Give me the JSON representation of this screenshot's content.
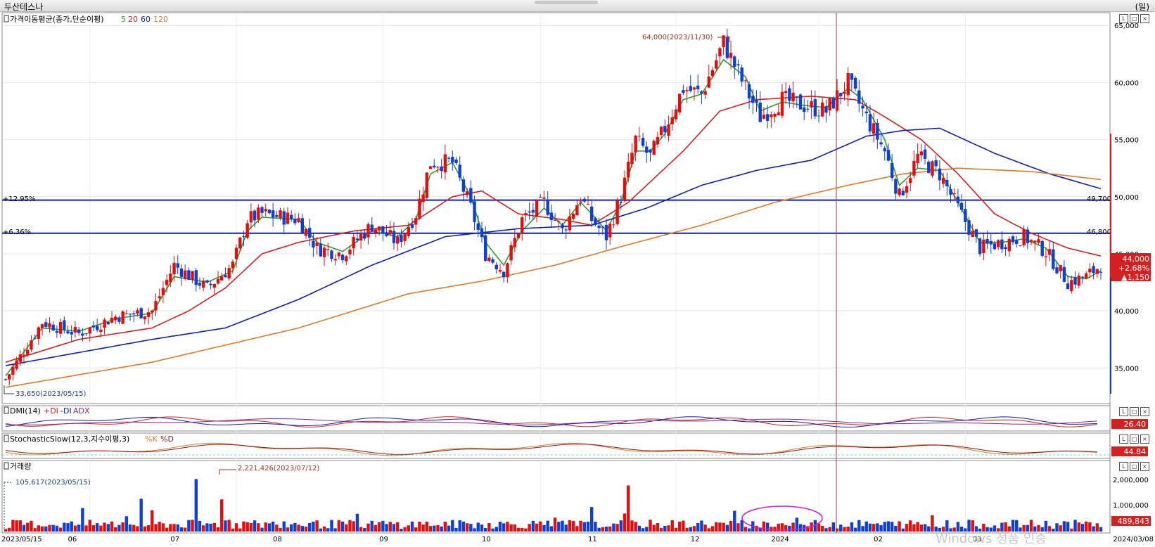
{
  "window": {
    "title": "두산테스나",
    "unit_label": "(일)"
  },
  "main_panel": {
    "legend_title": "가격이동평균(종가,단순이평)",
    "ma_periods": [
      "5",
      "20",
      "60",
      "120"
    ],
    "ma_colors": [
      "#2e9e2e",
      "#d42020",
      "#1020b0",
      "#e07a2a"
    ]
  },
  "annotations": {
    "high": "64,000(2023/11/30)",
    "low": "33,650(2023/05/15)",
    "line1_pct": "+12.95%",
    "line1_value": "49,700",
    "line2_pct": "+6.36%",
    "line2_value": "46,800",
    "current_price": "44,000",
    "change_pct": "+2.68%",
    "change_abs": "▲1,150",
    "volume_high": "2,221,426(2023/07/12)",
    "volume_low": "105,617(2023/05/15)"
  },
  "dmi_panel": {
    "title": "DMI(14)",
    "plus": "+DI",
    "minus": "-DI",
    "adx": "ADX",
    "value": "26.40"
  },
  "stoch_panel": {
    "title": "StochasticSlow(12,3,지수이평,3)",
    "k": "%K",
    "d": "%D",
    "value": "44.84"
  },
  "volume_panel": {
    "title": "거래량",
    "value": "489,843",
    "ticks": [
      "2,000,000",
      "1,000,000"
    ]
  },
  "x_labels": [
    "2023/05/15",
    "06",
    "07",
    "08",
    "09",
    "10",
    "11",
    "12",
    "2024",
    "02",
    "03",
    "2024/03/08"
  ],
  "watermark": "Windows 정품 인증",
  "chart_data": {
    "type": "candlestick",
    "title": "두산테스나",
    "xlabel": "",
    "ylabel": "",
    "x_range": [
      "2023/05/15",
      "2024/03/08"
    ],
    "ylim": [
      32000,
      66000
    ],
    "y_ticks": [
      35000,
      40000,
      45000,
      50000,
      55000,
      60000,
      65000
    ],
    "y_tick_labels": [
      "35,000",
      "40,000",
      "45,000",
      "50,000",
      "55,000",
      "60,000",
      "65,000"
    ],
    "horizontal_lines": [
      49700,
      46800
    ],
    "price_path": [
      [
        0,
        34000
      ],
      [
        10,
        39000
      ],
      [
        20,
        38000
      ],
      [
        30,
        39500
      ],
      [
        40,
        40000
      ],
      [
        46,
        44000
      ],
      [
        55,
        42000
      ],
      [
        62,
        44000
      ],
      [
        66,
        48000
      ],
      [
        70,
        48500
      ],
      [
        80,
        48000
      ],
      [
        85,
        45500
      ],
      [
        92,
        45000
      ],
      [
        100,
        47500
      ],
      [
        107,
        46000
      ],
      [
        112,
        48500
      ],
      [
        116,
        53000
      ],
      [
        122,
        53000
      ],
      [
        127,
        49000
      ],
      [
        131,
        45000
      ],
      [
        136,
        43500
      ],
      [
        141,
        48000
      ],
      [
        147,
        49500
      ],
      [
        152,
        47000
      ],
      [
        157,
        50000
      ],
      [
        160,
        48000
      ],
      [
        164,
        46500
      ],
      [
        168,
        50000
      ],
      [
        172,
        55000
      ],
      [
        176,
        53500
      ],
      [
        180,
        56000
      ],
      [
        185,
        59500
      ],
      [
        190,
        59000
      ],
      [
        196,
        63500
      ],
      [
        202,
        59500
      ],
      [
        206,
        57000
      ],
      [
        212,
        58500
      ],
      [
        218,
        58000
      ],
      [
        224,
        57500
      ],
      [
        230,
        60000
      ],
      [
        234,
        57500
      ],
      [
        240,
        54000
      ],
      [
        244,
        50000
      ],
      [
        249,
        53500
      ],
      [
        255,
        52000
      ],
      [
        260,
        49000
      ],
      [
        266,
        45500
      ],
      [
        272,
        46000
      ],
      [
        278,
        46500
      ],
      [
        284,
        45200
      ],
      [
        290,
        42500
      ],
      [
        295,
        43000
      ],
      [
        299,
        44000
      ]
    ],
    "series": [
      {
        "name": "5",
        "path": [
          [
            0,
            34300
          ],
          [
            10,
            38500
          ],
          [
            20,
            38200
          ],
          [
            30,
            39300
          ],
          [
            40,
            39800
          ],
          [
            46,
            43000
          ],
          [
            55,
            42500
          ],
          [
            62,
            43500
          ],
          [
            66,
            47000
          ],
          [
            70,
            48200
          ],
          [
            80,
            48000
          ],
          [
            85,
            46000
          ],
          [
            92,
            45200
          ],
          [
            100,
            47000
          ],
          [
            107,
            46500
          ],
          [
            112,
            48000
          ],
          [
            116,
            52000
          ],
          [
            122,
            53000
          ],
          [
            127,
            50000
          ],
          [
            131,
            46000
          ],
          [
            136,
            44000
          ],
          [
            141,
            47000
          ],
          [
            147,
            49000
          ],
          [
            152,
            47500
          ],
          [
            157,
            49500
          ],
          [
            160,
            48500
          ],
          [
            164,
            47000
          ],
          [
            168,
            49500
          ],
          [
            172,
            54000
          ],
          [
            176,
            54000
          ],
          [
            180,
            55500
          ],
          [
            185,
            58500
          ],
          [
            190,
            59000
          ],
          [
            196,
            62000
          ],
          [
            202,
            60500
          ],
          [
            206,
            57500
          ],
          [
            212,
            58300
          ],
          [
            218,
            58000
          ],
          [
            224,
            57800
          ],
          [
            230,
            59500
          ],
          [
            234,
            58500
          ],
          [
            240,
            55000
          ],
          [
            244,
            51000
          ],
          [
            249,
            52500
          ],
          [
            255,
            52300
          ],
          [
            260,
            49500
          ],
          [
            266,
            46000
          ],
          [
            272,
            46000
          ],
          [
            278,
            46300
          ],
          [
            284,
            45500
          ],
          [
            290,
            43000
          ],
          [
            295,
            42800
          ],
          [
            299,
            43500
          ]
        ]
      },
      {
        "name": "20",
        "path": [
          [
            0,
            35500
          ],
          [
            20,
            37500
          ],
          [
            40,
            38500
          ],
          [
            50,
            40000
          ],
          [
            60,
            42000
          ],
          [
            70,
            45000
          ],
          [
            80,
            46000
          ],
          [
            95,
            47000
          ],
          [
            110,
            47500
          ],
          [
            122,
            50000
          ],
          [
            130,
            50500
          ],
          [
            140,
            48500
          ],
          [
            152,
            48000
          ],
          [
            160,
            47500
          ],
          [
            170,
            49500
          ],
          [
            185,
            54000
          ],
          [
            195,
            57500
          ],
          [
            205,
            58500
          ],
          [
            220,
            58800
          ],
          [
            232,
            58500
          ],
          [
            240,
            57000
          ],
          [
            250,
            55000
          ],
          [
            260,
            52000
          ],
          [
            270,
            48500
          ],
          [
            280,
            46800
          ],
          [
            290,
            45500
          ],
          [
            299,
            44800
          ]
        ]
      },
      {
        "name": "60",
        "path": [
          [
            0,
            35200
          ],
          [
            40,
            37500
          ],
          [
            60,
            38500
          ],
          [
            80,
            41000
          ],
          [
            100,
            44000
          ],
          [
            120,
            46500
          ],
          [
            140,
            47200
          ],
          [
            160,
            47500
          ],
          [
            175,
            49000
          ],
          [
            190,
            51000
          ],
          [
            205,
            52300
          ],
          [
            220,
            53200
          ],
          [
            235,
            55300
          ],
          [
            245,
            55800
          ],
          [
            255,
            56000
          ],
          [
            270,
            53800
          ],
          [
            285,
            52000
          ],
          [
            299,
            50700
          ]
        ]
      },
      {
        "name": "120",
        "path": [
          [
            0,
            33300
          ],
          [
            40,
            35500
          ],
          [
            80,
            38500
          ],
          [
            110,
            41500
          ],
          [
            130,
            42600
          ],
          [
            150,
            44000
          ],
          [
            170,
            45800
          ],
          [
            190,
            47500
          ],
          [
            210,
            49500
          ],
          [
            230,
            51000
          ],
          [
            245,
            52000
          ],
          [
            260,
            52500
          ],
          [
            280,
            52200
          ],
          [
            299,
            51500
          ]
        ]
      }
    ],
    "volume": {
      "ylim": [
        0,
        2500000
      ],
      "y_ticks": [
        1000000,
        2000000
      ],
      "peak": 2221426,
      "min_marked": 105617
    }
  }
}
